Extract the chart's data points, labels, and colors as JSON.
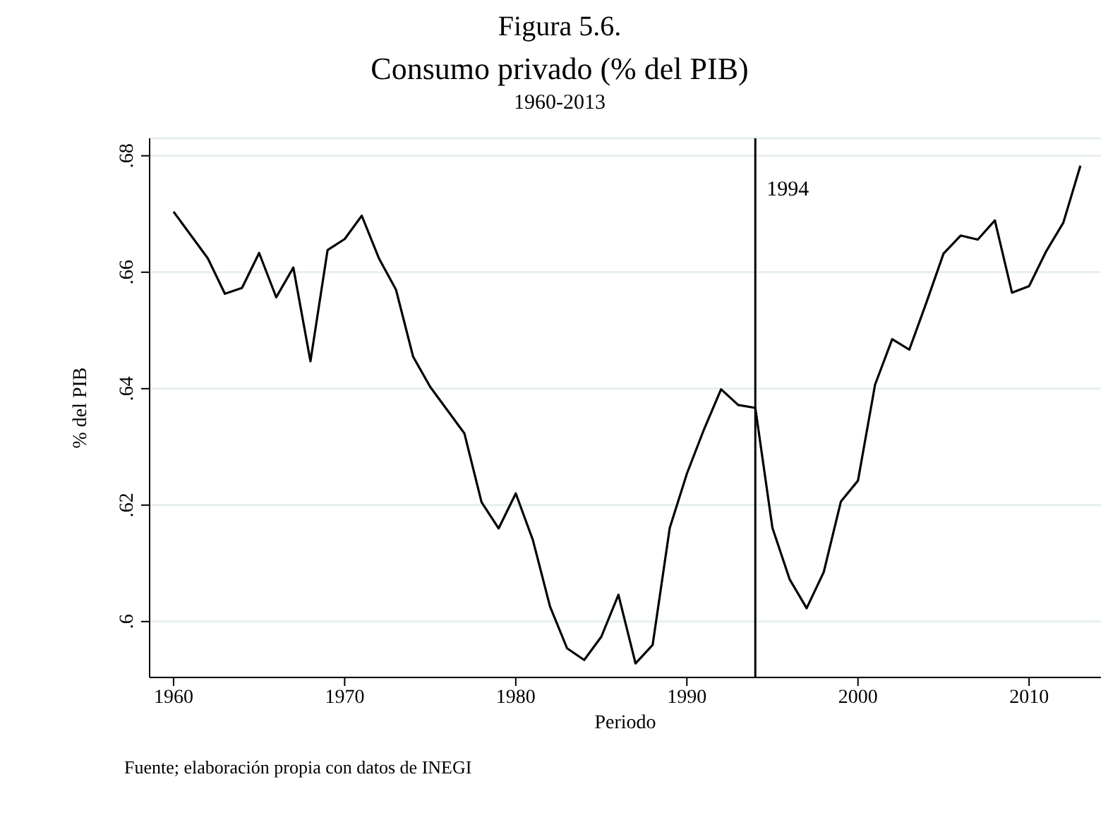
{
  "chart_data": {
    "type": "line",
    "title": "Consumo privado (% del PIB)",
    "subtitle": "1960-2013",
    "xlabel": "Periodo",
    "ylabel": "% del PIB",
    "annotations": [
      "Figura 5.6.",
      "Fuente; elaboración propia con datos de INEGI"
    ],
    "x": [
      1960,
      1961,
      1962,
      1963,
      1964,
      1965,
      1966,
      1967,
      1968,
      1969,
      1970,
      1971,
      1972,
      1973,
      1974,
      1975,
      1976,
      1977,
      1978,
      1979,
      1980,
      1981,
      1982,
      1983,
      1984,
      1985,
      1986,
      1987,
      1988,
      1989,
      1990,
      1991,
      1992,
      1993,
      1994,
      1995,
      1996,
      1997,
      1998,
      1999,
      2000,
      2001,
      2002,
      2003,
      2004,
      2005,
      2006,
      2007,
      2008,
      2009,
      2010,
      2011,
      2012,
      2013
    ],
    "series": [
      {
        "color": "#000000",
        "values": [
          0.6704,
          0.6664,
          0.6624,
          0.6563,
          0.6573,
          0.6633,
          0.6557,
          0.6608,
          0.6447,
          0.6638,
          0.6657,
          0.6697,
          0.6624,
          0.657,
          0.6455,
          0.6403,
          0.6363,
          0.6323,
          0.6205,
          0.616,
          0.622,
          0.614,
          0.6026,
          0.5954,
          0.5934,
          0.5974,
          0.6046,
          0.5928,
          0.596,
          0.6161,
          0.6254,
          0.633,
          0.6399,
          0.6372,
          0.6367,
          0.6161,
          0.6073,
          0.6023,
          0.6085,
          0.6206,
          0.6242,
          0.6407,
          0.6485,
          0.6467,
          0.6548,
          0.6632,
          0.6663,
          0.6656,
          0.6689,
          0.6565,
          0.6576,
          0.6636,
          0.6685,
          0.6783
        ]
      }
    ],
    "xlim": [
      1958.6,
      2014.2
    ],
    "xticks": [
      1960,
      1970,
      1980,
      1990,
      2000,
      2010
    ],
    "ylim": [
      0.5904,
      0.683
    ],
    "yticks": [
      {
        "value": 0.6,
        "label": ".6"
      },
      {
        "value": 0.62,
        "label": ".62"
      },
      {
        "value": 0.64,
        "label": ".64"
      },
      {
        "value": 0.66,
        "label": ".66"
      },
      {
        "value": 0.68,
        "label": ".68"
      }
    ],
    "ref_lines": [
      {
        "axis": "x",
        "value": 1994,
        "label": "1994",
        "color": "#000000"
      }
    ],
    "grid": "y",
    "marker": "none",
    "line_style": "solid"
  }
}
